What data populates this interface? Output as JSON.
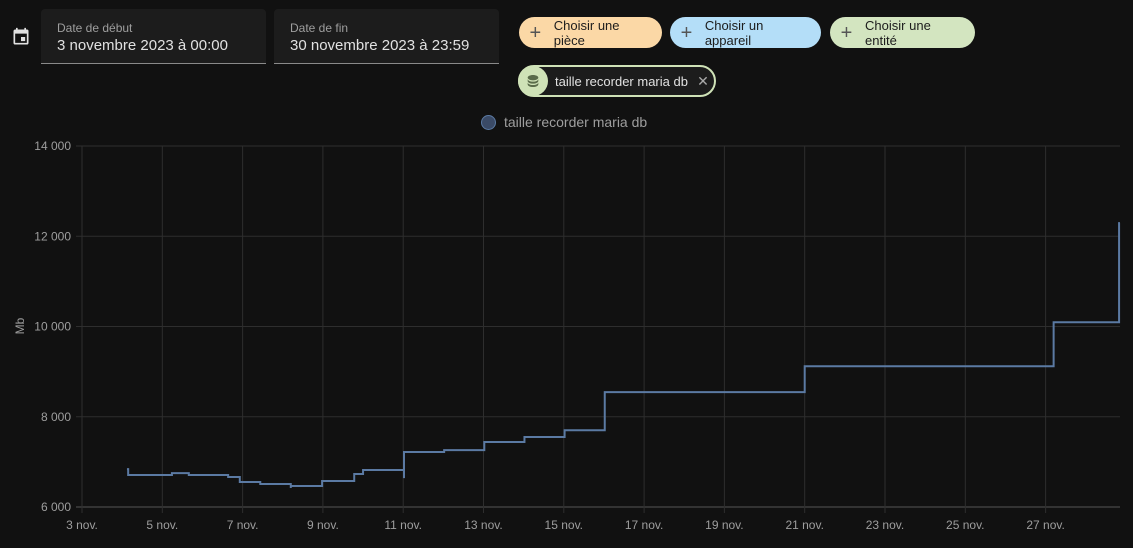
{
  "header": {
    "calendar_icon": "calendar-icon",
    "start_date": {
      "label": "Date de début",
      "value": "3 novembre 2023 à 00:00"
    },
    "end_date": {
      "label": "Date de fin",
      "value": "30 novembre 2023 à 23:59"
    }
  },
  "target_picker": {
    "chips": [
      {
        "label": "Choisir une pièce",
        "icon": "plus-icon",
        "color": "#fbd8a6"
      },
      {
        "label": "Choisir un appareil",
        "icon": "plus-icon",
        "color": "#b4def8"
      },
      {
        "label": "Choisir une entité",
        "icon": "plus-icon",
        "color": "#d3e5c0"
      }
    ],
    "selected": [
      {
        "label": "taille recorder maria db",
        "icon": "database-icon",
        "remove_icon": "close-icon",
        "color": "#cfe2b7"
      }
    ]
  },
  "legend": {
    "label": "taille recorder maria db",
    "color": "#5b7aa3"
  },
  "chart_data": {
    "type": "line",
    "title": "",
    "xlabel": "",
    "ylabel": "Mb",
    "ylim": [
      6000,
      14000
    ],
    "yticks": [
      "6 000",
      "8 000",
      "10 000",
      "12 000",
      "14 000"
    ],
    "xticks": [
      "3 nov.",
      "5 nov.",
      "7 nov.",
      "9 nov.",
      "11 nov.",
      "13 nov.",
      "15 nov.",
      "17 nov.",
      "19 nov.",
      "21 nov.",
      "23 nov.",
      "25 nov.",
      "27 nov."
    ],
    "grid": true,
    "step": true,
    "series": [
      {
        "name": "taille recorder maria db",
        "color": "#5b7aa3",
        "x_days_from_nov3": [
          1.12,
          1.15,
          2.24,
          2.66,
          3.64,
          3.93,
          4.44,
          5.2,
          5.98,
          6.78,
          7.0,
          8.02,
          9.02,
          10.02,
          11.02,
          12.02,
          13.02,
          14.0,
          18.0,
          24.2,
          25.83
        ],
        "values": [
          6840,
          6710,
          6750,
          6710,
          6665,
          6555,
          6510,
          6465,
          6575,
          6730,
          6820,
          7220,
          7260,
          7440,
          7550,
          7700,
          8545,
          8545,
          9120,
          10095,
          12290
        ]
      }
    ]
  }
}
